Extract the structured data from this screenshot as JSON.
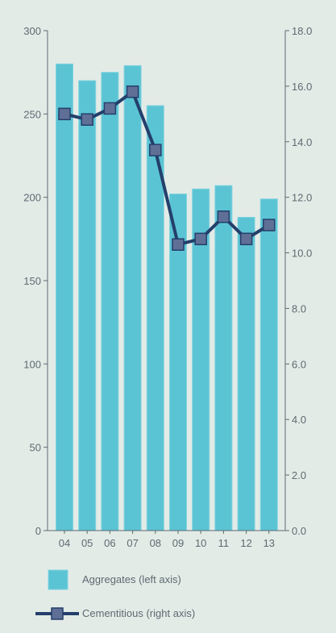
{
  "chart_data": {
    "type": "bar",
    "categories": [
      "04",
      "05",
      "06",
      "07",
      "08",
      "09",
      "10",
      "11",
      "12",
      "13"
    ],
    "series": [
      {
        "name": "Aggregates (left axis)",
        "type": "bar",
        "axis": "left",
        "values": [
          280,
          270,
          275,
          279,
          255,
          202,
          205,
          207,
          188,
          199
        ]
      },
      {
        "name": "Cementitious (right axis)",
        "type": "line",
        "axis": "right",
        "values": [
          15.0,
          14.8,
          15.2,
          15.8,
          13.7,
          10.3,
          10.5,
          11.3,
          10.5,
          11.0
        ]
      }
    ],
    "left_axis": {
      "ylim": [
        0,
        300
      ],
      "ticks": [
        "0",
        "50",
        "100",
        "150",
        "200",
        "250",
        "300"
      ]
    },
    "right_axis": {
      "ylim": [
        0,
        18
      ],
      "ticks": [
        "0.0",
        "2.0",
        "4.0",
        "6.0",
        "8.0",
        "10.0",
        "12.0",
        "14.0",
        "16.0",
        "18.0"
      ]
    },
    "legend": {
      "placement": "bottom"
    },
    "grid": false
  },
  "colors": {
    "background": "#e3ebe7",
    "bar": "#5bc4d4",
    "bar_edge": "#7fd3df",
    "line": "#243f6b",
    "marker": "#5f6f96",
    "axis": "#5d6a70",
    "text": "#5d6a70"
  }
}
